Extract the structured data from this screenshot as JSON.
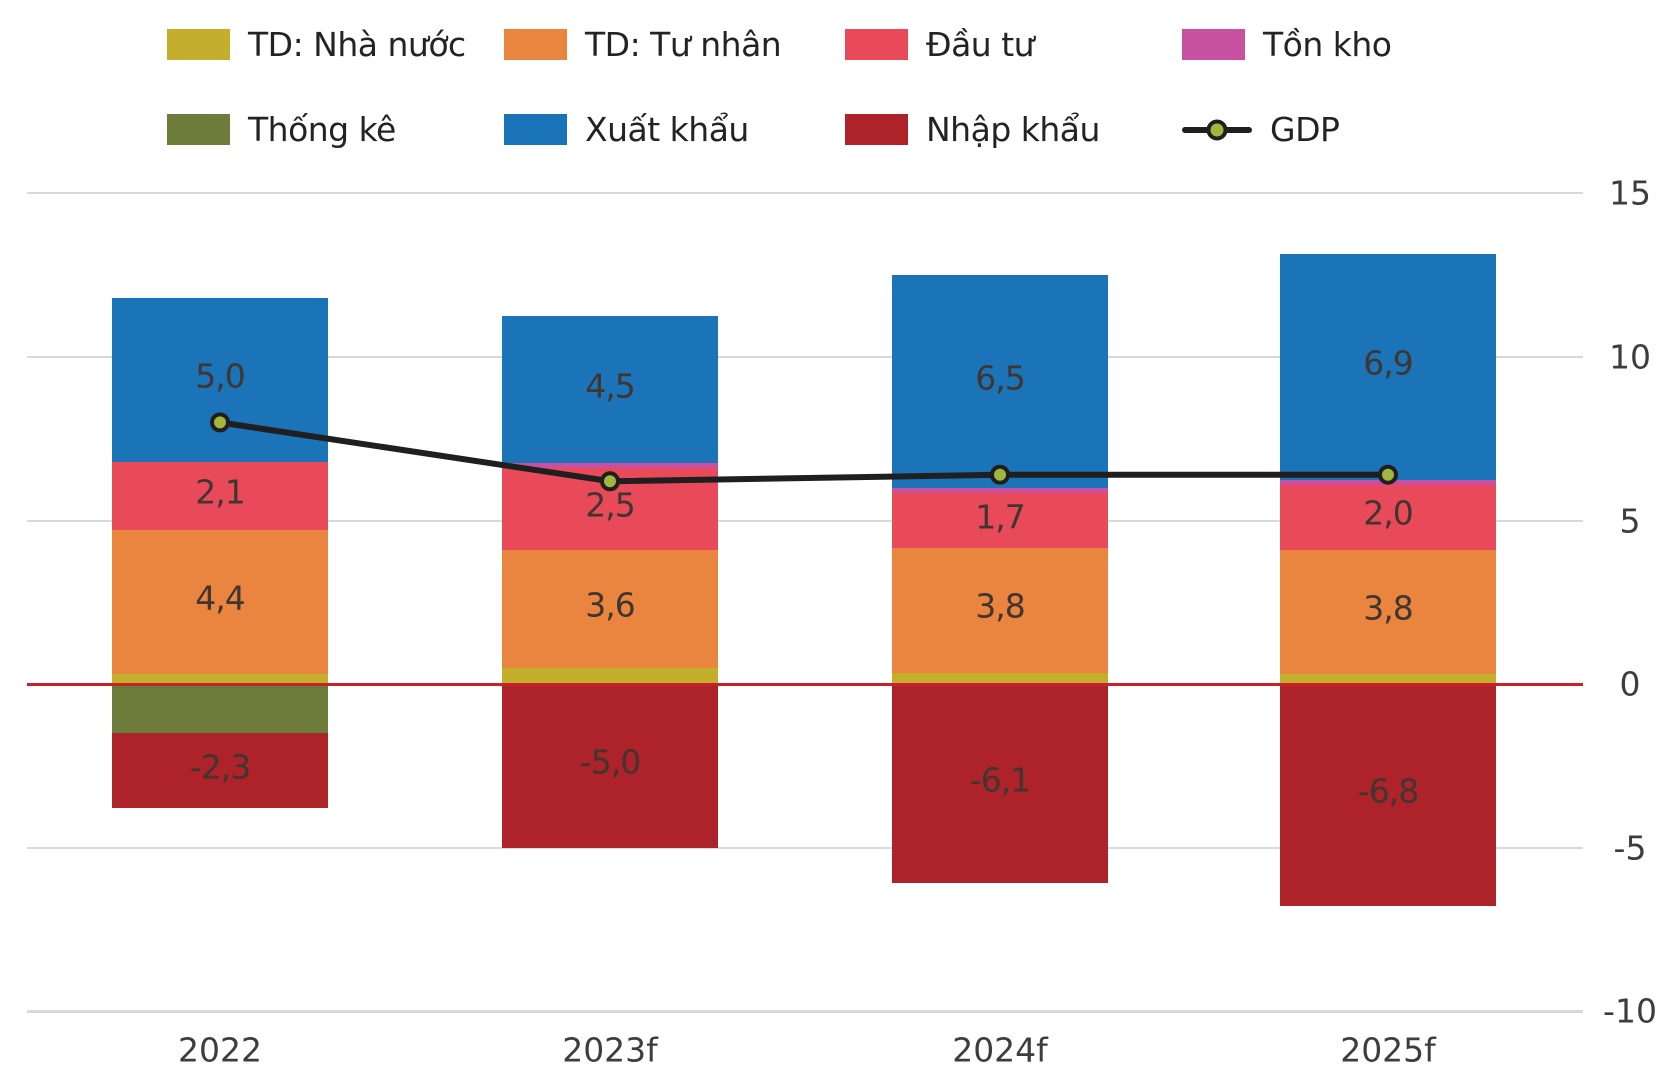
{
  "chart_data": {
    "type": "stacked-bar-line",
    "title": "",
    "categories": [
      "2022",
      "2023f",
      "2024f",
      "2025f"
    ],
    "series": [
      {
        "name": "TD: Nhà nước",
        "color": "#c4af2d",
        "values": [
          0.3,
          0.5,
          0.35,
          0.3
        ],
        "labels": [
          "",
          "",
          "",
          ""
        ]
      },
      {
        "name": "TD: Tư nhân",
        "color": "#e9853e",
        "values": [
          4.4,
          3.6,
          3.8,
          3.8
        ],
        "labels": [
          "4,4",
          "3,6",
          "3,8",
          "3,8"
        ]
      },
      {
        "name": "Đầu tư",
        "color": "#e84a59",
        "values": [
          2.1,
          2.5,
          1.7,
          2.0
        ],
        "labels": [
          "2,1",
          "2,5",
          "1,7",
          "2,0"
        ]
      },
      {
        "name": "Tồn kho",
        "color": "#c751a0",
        "values": [
          0,
          0.15,
          0.15,
          0.15
        ],
        "labels": [
          "",
          "",
          "",
          ""
        ]
      },
      {
        "name": "Xuất khẩu",
        "color": "#1b74b8",
        "values": [
          5.0,
          4.5,
          6.5,
          6.9
        ],
        "labels": [
          "5,0",
          "4,5",
          "6,5",
          "6,9"
        ]
      },
      {
        "name": "Thống kê",
        "color": "#6d7c3a",
        "values": [
          -1.5,
          0,
          0,
          0
        ],
        "labels": [
          "",
          "",
          "",
          ""
        ]
      },
      {
        "name": "Nhập khẩu",
        "color": "#ad2329",
        "values": [
          -2.3,
          -5.0,
          -6.1,
          -6.8
        ],
        "labels": [
          "-2,3",
          "-5,0",
          "-6,1",
          "-6,8"
        ]
      }
    ],
    "line_series": {
      "name": "GDP",
      "color": "#1f1f1f",
      "marker_fill": "#a2b53e",
      "values": [
        8.0,
        6.2,
        6.4,
        6.4
      ]
    },
    "y_axis": {
      "side": "right",
      "min": -10,
      "max": 15,
      "tick_values": [
        15,
        10,
        5,
        0,
        -5,
        -10
      ],
      "tick_labels": [
        "15",
        "10",
        "5",
        "0",
        "-5",
        "-10"
      ]
    },
    "grid": true,
    "zero_line_color": "#c9202b",
    "grid_color": "#d9d9d9",
    "legend_position": "top"
  },
  "legend": {
    "rows": [
      [
        {
          "label": "TD: Nhà nước",
          "color": "#c4af2d",
          "type": "swatch"
        },
        {
          "label": "TD: Tư nhân",
          "color": "#e9853e",
          "type": "swatch"
        },
        {
          "label": "Đầu tư",
          "color": "#e84a59",
          "type": "swatch"
        },
        {
          "label": "Tồn kho",
          "color": "#c751a0",
          "type": "swatch"
        }
      ],
      [
        {
          "label": "Thống kê",
          "color": "#6d7c3a",
          "type": "swatch"
        },
        {
          "label": "Xuất khẩu",
          "color": "#1b74b8",
          "type": "swatch"
        },
        {
          "label": "Nhập khẩu",
          "color": "#ad2329",
          "type": "swatch"
        },
        {
          "label": "GDP",
          "color": "#1f1f1f",
          "marker": "#a2b53e",
          "type": "line"
        }
      ]
    ]
  }
}
